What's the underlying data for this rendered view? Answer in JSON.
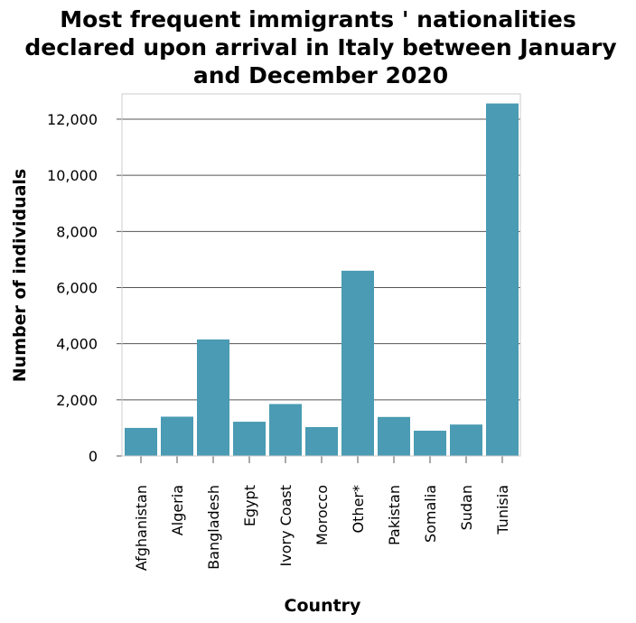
{
  "chart_data": {
    "type": "bar",
    "title": [
      "Most frequent immigrants ' nationalities",
      "declared upon arrival in Italy between January",
      "and December 2020"
    ],
    "xlabel": "Country",
    "ylabel": "Number of individuals",
    "categories": [
      "Afghanistan",
      "Algeria",
      "Bangladesh",
      "Egypt",
      "Ivory Coast",
      "Morocco",
      "Other*",
      "Pakistan",
      "Somalia",
      "Sudan",
      "Tunisia"
    ],
    "values": [
      1000,
      1400,
      4150,
      1220,
      1850,
      1030,
      6600,
      1390,
      900,
      1120,
      12560
    ],
    "ylim": [
      0,
      12900
    ],
    "yticks": [
      0,
      2000,
      4000,
      6000,
      8000,
      10000,
      12000
    ],
    "ytick_labels": [
      "0",
      "2,000",
      "4,000",
      "6,000",
      "8,000",
      "10,000",
      "12,000"
    ],
    "grid": true,
    "colors": {
      "bar": "#4a9bb3"
    }
  }
}
